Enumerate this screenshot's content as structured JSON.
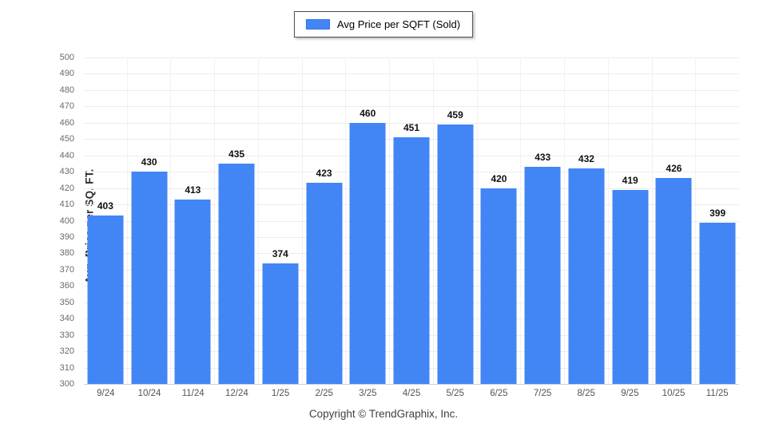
{
  "legend": {
    "label": "Avg Price per SQFT (Sold)",
    "swatch_color": "#4285F4"
  },
  "footer": {
    "copyright": "Copyright © TrendGraphix, Inc."
  },
  "chart_data": {
    "type": "bar",
    "title": "Avg Price per SQFT (Sold)",
    "categories": [
      "9/24",
      "10/24",
      "11/24",
      "12/24",
      "1/25",
      "2/25",
      "3/25",
      "4/25",
      "5/25",
      "6/25",
      "7/25",
      "8/25",
      "9/25",
      "10/25",
      "11/25"
    ],
    "values": [
      403,
      430,
      413,
      435,
      374,
      423,
      460,
      451,
      459,
      420,
      433,
      432,
      419,
      426,
      399
    ],
    "xlabel": "",
    "ylabel": "Avg. Price per SQ. FT.",
    "ylim": [
      300,
      500
    ],
    "ytick_step": 10,
    "grid": true,
    "data_labels": true,
    "legend_position": "top-center",
    "bar_color": "#4285F4",
    "gridline_color": "#ececec"
  }
}
